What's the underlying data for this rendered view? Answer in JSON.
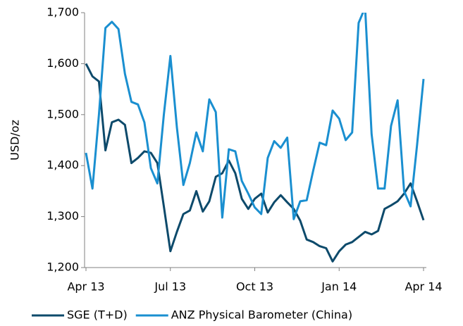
{
  "chart_data": {
    "type": "line",
    "y_label": "USD/oz",
    "categories": [
      "Apr 13",
      null,
      null,
      null,
      null,
      null,
      null,
      null,
      null,
      null,
      null,
      null,
      null,
      "Jul 13",
      null,
      null,
      null,
      null,
      null,
      null,
      null,
      null,
      null,
      null,
      null,
      null,
      "Oct 13",
      null,
      null,
      null,
      null,
      null,
      null,
      null,
      null,
      null,
      null,
      null,
      null,
      "Jan 14",
      null,
      null,
      null,
      null,
      null,
      null,
      null,
      null,
      null,
      null,
      null,
      null,
      "Apr 14"
    ],
    "series": [
      {
        "name": "SGE (T+D)",
        "color": "#0d4a6b",
        "values": [
          1600,
          1575,
          1565,
          1430,
          1485,
          1490,
          1480,
          1405,
          1415,
          1428,
          1425,
          1405,
          1320,
          1232,
          1270,
          1305,
          1312,
          1350,
          1310,
          1330,
          1378,
          1385,
          1410,
          1385,
          1335,
          1315,
          1335,
          1345,
          1308,
          1328,
          1342,
          1328,
          1315,
          1292,
          1255,
          1250,
          1242,
          1238,
          1212,
          1232,
          1245,
          1250,
          1260,
          1270,
          1265,
          1272,
          1315,
          1322,
          1330,
          1345,
          1365,
          1330,
          1293
        ]
      },
      {
        "name": "ANZ Physical Barometer (China)",
        "color": "#1a8fd0",
        "values": [
          1425,
          1355,
          1500,
          1670,
          1682,
          1668,
          1580,
          1525,
          1520,
          1485,
          1395,
          1365,
          1500,
          1615,
          1475,
          1362,
          1405,
          1465,
          1428,
          1530,
          1505,
          1298,
          1432,
          1428,
          1370,
          1345,
          1318,
          1305,
          1415,
          1448,
          1435,
          1455,
          1295,
          1330,
          1332,
          1390,
          1445,
          1440,
          1508,
          1492,
          1450,
          1465,
          1680,
          1710,
          1462,
          1355,
          1355,
          1478,
          1528,
          1350,
          1320,
          1440,
          1570
        ]
      }
    ],
    "ylim": [
      1200,
      1700
    ],
    "yticks": [
      {
        "value": 1200,
        "label": "1,200"
      },
      {
        "value": 1300,
        "label": "1,300"
      },
      {
        "value": 1400,
        "label": "1,400"
      },
      {
        "value": 1500,
        "label": "1,500"
      },
      {
        "value": 1600,
        "label": "1,600"
      },
      {
        "value": 1700,
        "label": "1,700"
      }
    ],
    "grid": false,
    "legend": "bottom"
  }
}
